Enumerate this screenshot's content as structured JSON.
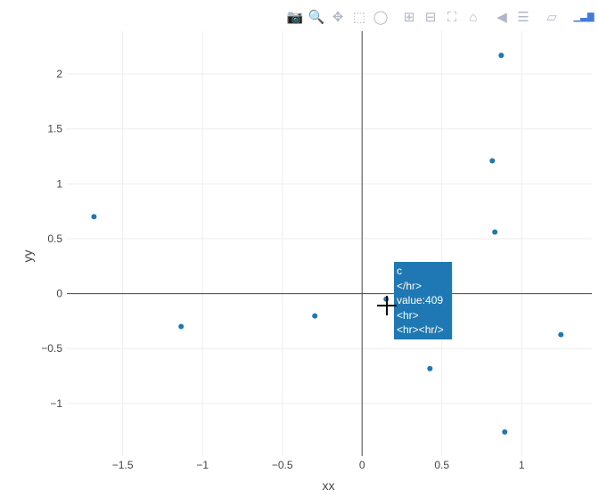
{
  "modebar": {
    "buttons": [
      {
        "icon": "camera-icon",
        "label": "Download plot as a png"
      },
      {
        "icon": "zoom-icon",
        "label": "Zoom",
        "active": true
      },
      {
        "icon": "pan-icon",
        "label": "Pan"
      },
      {
        "icon": "box-select-icon",
        "label": "Box Select"
      },
      {
        "icon": "lasso-select-icon",
        "label": "Lasso Select"
      },
      {
        "icon": "zoom-in-icon",
        "label": "Zoom in"
      },
      {
        "icon": "zoom-out-icon",
        "label": "Zoom out"
      },
      {
        "icon": "autoscale-icon",
        "label": "Autoscale"
      },
      {
        "icon": "home-icon",
        "label": "Reset axes"
      },
      {
        "icon": "hover-closest-icon",
        "label": "Show closest data on hover"
      },
      {
        "icon": "hover-compare-icon",
        "label": "Compare data on hover"
      },
      {
        "icon": "spike-lines-icon",
        "label": "Toggle Spike Lines"
      },
      {
        "icon": "plotly-logo-icon",
        "label": "Produced with Plotly"
      }
    ]
  },
  "tooltip": {
    "lines": [
      "c",
      "</hr>",
      "value:409",
      "<hr>",
      "<hr><hr/>"
    ]
  },
  "chart_data": {
    "type": "scatter",
    "xlabel": "xx",
    "ylabel": "yy",
    "xlim": [
      -1.85,
      1.44
    ],
    "ylim": [
      -1.48,
      2.39
    ],
    "xticks": [
      -1.5,
      -1,
      -0.5,
      0,
      0.5,
      1
    ],
    "xtick_labels": [
      "−1.5",
      "−1",
      "−0.5",
      "0",
      "0.5",
      "1"
    ],
    "yticks": [
      -1,
      -0.5,
      0,
      0.5,
      1,
      1.5,
      2
    ],
    "ytick_labels": [
      "−1",
      "−0.5",
      "0",
      "0.5",
      "1",
      "1.5",
      "2"
    ],
    "grid": true,
    "zeroline": true,
    "color": "#1f77b4",
    "x": [
      0.872,
      0.816,
      0.832,
      -1.68,
      -1.134,
      -0.296,
      0.151,
      1.246,
      0.425,
      0.894
    ],
    "y": [
      2.17,
      1.21,
      0.56,
      0.7,
      -0.3,
      -0.203,
      -0.05,
      -0.374,
      -0.683,
      -1.26
    ]
  }
}
